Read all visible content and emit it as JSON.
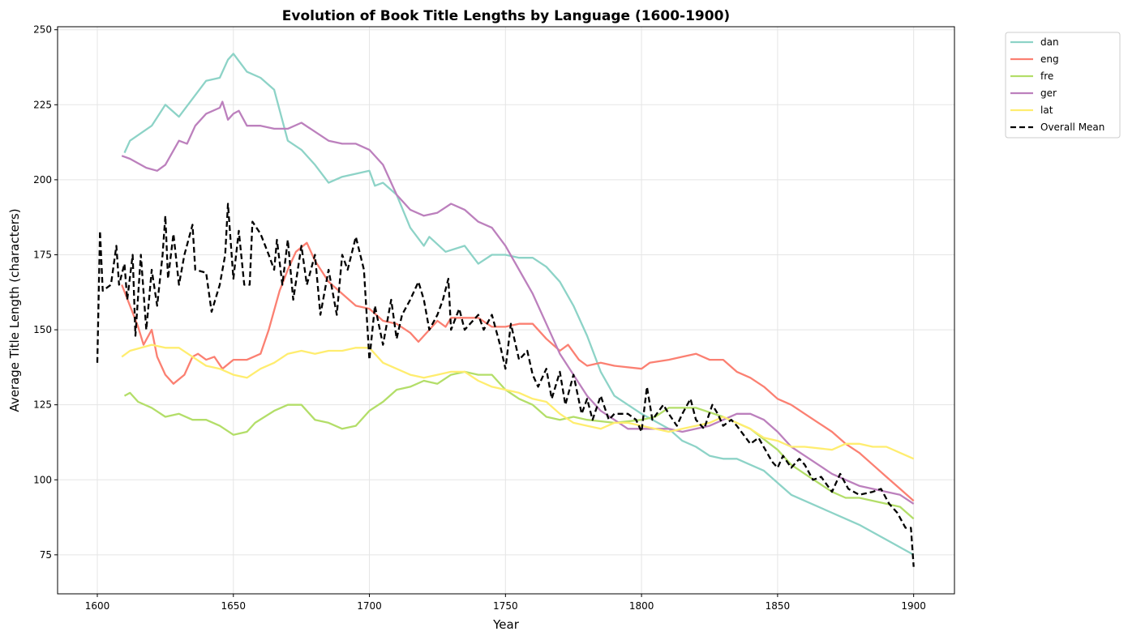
{
  "chart_data": {
    "type": "line",
    "title": "Evolution of Book Title Lengths by Language (1600-1900)",
    "xlabel": "Year",
    "ylabel": "Average Title Length (characters)",
    "xlim": [
      1585.4,
      1915
    ],
    "ylim": [
      62,
      251
    ],
    "xticks": [
      1600,
      1650,
      1700,
      1750,
      1800,
      1850,
      1900
    ],
    "yticks": [
      75,
      100,
      125,
      150,
      175,
      200,
      225,
      250
    ],
    "grid": true,
    "legend_position": "outside-top-right",
    "series": [
      {
        "name": "dan",
        "color": "#8dd3c7",
        "dashed": false,
        "x": [
          1610,
          1612,
          1620,
          1625,
          1630,
          1635,
          1640,
          1645,
          1648,
          1650,
          1655,
          1660,
          1665,
          1670,
          1675,
          1680,
          1685,
          1690,
          1695,
          1700,
          1702,
          1705,
          1710,
          1715,
          1720,
          1722,
          1728,
          1735,
          1740,
          1745,
          1750,
          1755,
          1760,
          1765,
          1770,
          1775,
          1780,
          1785,
          1790,
          1795,
          1800,
          1810,
          1815,
          1820,
          1825,
          1830,
          1835,
          1840,
          1845,
          1850,
          1855,
          1860,
          1870,
          1880,
          1890,
          1900
        ],
        "y": [
          209,
          213,
          218,
          225,
          221,
          227,
          233,
          234,
          240,
          242,
          236,
          234,
          230,
          213,
          210,
          205,
          199,
          201,
          202,
          203,
          198,
          199,
          195,
          184,
          178,
          181,
          176,
          178,
          172,
          175,
          175,
          174,
          174,
          171,
          166,
          158,
          148,
          136,
          128,
          125,
          122,
          117,
          113,
          111,
          108,
          107,
          107,
          105,
          103,
          99,
          95,
          93,
          89,
          85,
          80,
          75
        ]
      },
      {
        "name": "eng",
        "color": "#fb8072",
        "dashed": false,
        "x": [
          1609,
          1612,
          1615,
          1617,
          1620,
          1622,
          1625,
          1628,
          1632,
          1635,
          1637,
          1640,
          1643,
          1646,
          1650,
          1655,
          1660,
          1663,
          1667,
          1670,
          1673,
          1677,
          1680,
          1685,
          1690,
          1695,
          1700,
          1705,
          1710,
          1715,
          1718,
          1722,
          1725,
          1728,
          1730,
          1735,
          1740,
          1745,
          1750,
          1755,
          1760,
          1765,
          1770,
          1773,
          1777,
          1780,
          1785,
          1790,
          1800,
          1803,
          1810,
          1815,
          1820,
          1825,
          1830,
          1835,
          1840,
          1845,
          1850,
          1855,
          1860,
          1865,
          1870,
          1875,
          1880,
          1885,
          1890,
          1895,
          1900
        ],
        "y": [
          165,
          158,
          151,
          145,
          150,
          141,
          135,
          132,
          135,
          141,
          142,
          140,
          141,
          137,
          140,
          140,
          142,
          150,
          163,
          170,
          176,
          179,
          173,
          166,
          162,
          158,
          157,
          153,
          152,
          149,
          146,
          150,
          153,
          151,
          154,
          154,
          154,
          151,
          151,
          152,
          152,
          147,
          143,
          145,
          140,
          138,
          139,
          138,
          137,
          139,
          140,
          141,
          142,
          140,
          140,
          136,
          134,
          131,
          127,
          125,
          122,
          119,
          116,
          112,
          109,
          105,
          101,
          97,
          93
        ]
      },
      {
        "name": "fre",
        "color": "#b3de69",
        "dashed": false,
        "x": [
          1610,
          1612,
          1615,
          1620,
          1625,
          1630,
          1635,
          1640,
          1645,
          1650,
          1655,
          1658,
          1665,
          1670,
          1675,
          1680,
          1685,
          1690,
          1695,
          1700,
          1705,
          1710,
          1715,
          1720,
          1725,
          1730,
          1735,
          1740,
          1745,
          1750,
          1755,
          1760,
          1765,
          1770,
          1775,
          1780,
          1790,
          1800,
          1805,
          1810,
          1820,
          1830,
          1840,
          1850,
          1855,
          1860,
          1865,
          1870,
          1875,
          1880,
          1890,
          1895,
          1900
        ],
        "y": [
          128,
          129,
          126,
          124,
          121,
          122,
          120,
          120,
          118,
          115,
          116,
          119,
          123,
          125,
          125,
          120,
          119,
          117,
          118,
          123,
          126,
          130,
          131,
          133,
          132,
          135,
          136,
          135,
          135,
          130,
          127,
          125,
          121,
          120,
          121,
          120,
          119,
          120,
          121,
          124,
          124,
          121,
          117,
          110,
          105,
          102,
          99,
          96,
          94,
          94,
          92,
          91,
          87
        ]
      },
      {
        "name": "ger",
        "color": "#bc80bd",
        "dashed": false,
        "x": [
          1609,
          1612,
          1618,
          1622,
          1625,
          1630,
          1633,
          1636,
          1640,
          1645,
          1646,
          1648,
          1650,
          1652,
          1655,
          1660,
          1665,
          1670,
          1675,
          1680,
          1685,
          1690,
          1695,
          1700,
          1705,
          1710,
          1715,
          1720,
          1725,
          1730,
          1735,
          1740,
          1745,
          1750,
          1755,
          1760,
          1765,
          1770,
          1775,
          1780,
          1785,
          1790,
          1795,
          1800,
          1810,
          1815,
          1820,
          1825,
          1830,
          1835,
          1840,
          1845,
          1850,
          1855,
          1860,
          1870,
          1880,
          1890,
          1895,
          1900
        ],
        "y": [
          208,
          207,
          204,
          203,
          205,
          213,
          212,
          218,
          222,
          224,
          226,
          220,
          222,
          223,
          218,
          218,
          217,
          217,
          219,
          216,
          213,
          212,
          212,
          210,
          205,
          195,
          190,
          188,
          189,
          192,
          190,
          186,
          184,
          178,
          170,
          162,
          152,
          142,
          135,
          128,
          123,
          120,
          117,
          117,
          117,
          116,
          117,
          118,
          120,
          122,
          122,
          120,
          116,
          111,
          108,
          102,
          98,
          96,
          95,
          92
        ]
      },
      {
        "name": "lat",
        "color": "#ffed6f",
        "dashed": false,
        "x": [
          1609,
          1612,
          1620,
          1625,
          1630,
          1635,
          1640,
          1645,
          1650,
          1655,
          1660,
          1665,
          1670,
          1675,
          1680,
          1685,
          1690,
          1695,
          1700,
          1705,
          1710,
          1715,
          1720,
          1725,
          1730,
          1735,
          1740,
          1745,
          1750,
          1755,
          1760,
          1765,
          1770,
          1775,
          1780,
          1785,
          1790,
          1795,
          1800,
          1805,
          1810,
          1815,
          1820,
          1825,
          1830,
          1835,
          1840,
          1845,
          1850,
          1855,
          1860,
          1870,
          1875,
          1880,
          1885,
          1890,
          1895,
          1900
        ],
        "y": [
          141,
          143,
          145,
          144,
          144,
          141,
          138,
          137,
          135,
          134,
          137,
          139,
          142,
          143,
          142,
          143,
          143,
          144,
          144,
          139,
          137,
          135,
          134,
          135,
          136,
          136,
          133,
          131,
          130,
          129,
          127,
          126,
          122,
          119,
          118,
          117,
          119,
          119,
          118,
          117,
          116,
          117,
          118,
          119,
          121,
          119,
          117,
          114,
          113,
          111,
          111,
          110,
          112,
          112,
          111,
          111,
          109,
          107
        ]
      },
      {
        "name": "Overall Mean",
        "color": "#000000",
        "dashed": true,
        "x": [
          1600,
          1601,
          1602,
          1605,
          1607,
          1608,
          1610,
          1611,
          1613,
          1614,
          1616,
          1618,
          1620,
          1622,
          1624,
          1625,
          1626,
          1628,
          1630,
          1632,
          1635,
          1636,
          1640,
          1642,
          1645,
          1647,
          1648,
          1650,
          1652,
          1654,
          1656,
          1657,
          1660,
          1663,
          1665,
          1666,
          1668,
          1670,
          1672,
          1675,
          1677,
          1680,
          1682,
          1685,
          1688,
          1690,
          1692,
          1695,
          1698,
          1700,
          1702,
          1705,
          1708,
          1710,
          1712,
          1715,
          1718,
          1720,
          1722,
          1725,
          1727,
          1729,
          1730,
          1733,
          1735,
          1740,
          1742,
          1745,
          1748,
          1750,
          1752,
          1755,
          1758,
          1760,
          1762,
          1765,
          1767,
          1770,
          1772,
          1775,
          1778,
          1780,
          1782,
          1785,
          1788,
          1790,
          1795,
          1798,
          1800,
          1802,
          1804,
          1808,
          1810,
          1813,
          1815,
          1818,
          1820,
          1823,
          1826,
          1828,
          1830,
          1833,
          1835,
          1840,
          1843,
          1848,
          1850,
          1852,
          1855,
          1858,
          1860,
          1863,
          1866,
          1870,
          1873,
          1876,
          1880,
          1885,
          1888,
          1891,
          1894,
          1897,
          1899,
          1900
        ],
        "y": [
          139,
          183,
          163,
          165,
          178,
          165,
          172,
          160,
          175,
          148,
          175,
          150,
          170,
          158,
          175,
          188,
          167,
          182,
          165,
          175,
          185,
          170,
          169,
          156,
          165,
          175,
          192,
          167,
          183,
          165,
          165,
          186,
          182,
          175,
          170,
          180,
          165,
          180,
          160,
          178,
          165,
          175,
          155,
          170,
          155,
          175,
          170,
          181,
          170,
          140,
          158,
          145,
          160,
          147,
          155,
          160,
          166,
          160,
          150,
          155,
          160,
          167,
          150,
          157,
          150,
          155,
          150,
          155,
          145,
          137,
          152,
          140,
          143,
          135,
          131,
          137,
          127,
          136,
          125,
          135,
          122,
          127,
          120,
          128,
          120,
          122,
          122,
          120,
          116,
          131,
          120,
          125,
          122,
          118,
          122,
          127,
          120,
          117,
          125,
          122,
          118,
          120,
          118,
          112,
          114,
          106,
          104,
          108,
          104,
          107,
          105,
          100,
          101,
          96,
          102,
          97,
          95,
          96,
          97,
          92,
          89,
          84,
          84,
          71
        ]
      }
    ]
  }
}
